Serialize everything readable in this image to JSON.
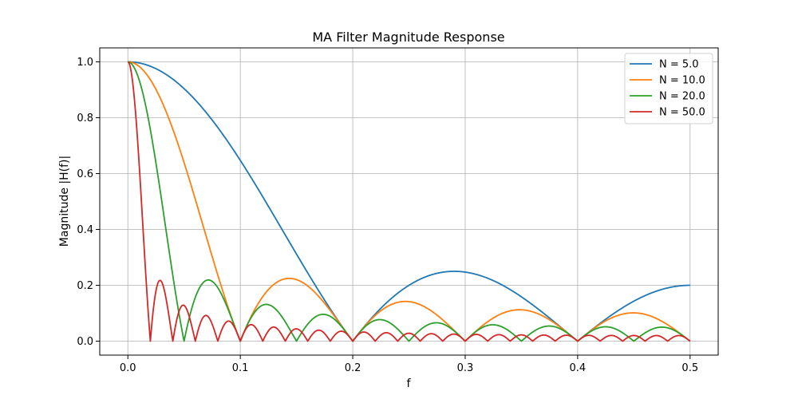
{
  "chart_data": {
    "type": "line",
    "title": "MA Filter Magnitude Response",
    "xlabel": "f",
    "ylabel": "Magnitude |H(f)|",
    "xlim": [
      -0.025,
      0.525
    ],
    "ylim": [
      -0.05,
      1.05
    ],
    "x_ticks": [
      0.0,
      0.1,
      0.2,
      0.3,
      0.4,
      0.5
    ],
    "x_tick_labels": [
      "0.0",
      "0.1",
      "0.2",
      "0.3",
      "0.4",
      "0.5"
    ],
    "y_ticks": [
      0.0,
      0.2,
      0.4,
      0.6,
      0.8,
      1.0
    ],
    "y_tick_labels": [
      "0.0",
      "0.2",
      "0.4",
      "0.6",
      "0.8",
      "1.0"
    ],
    "grid": true,
    "legend_position": "top-right",
    "formula": "|sin(pi*N*f) / (N*sin(pi*f))|",
    "f_range": [
      0.0,
      0.5
    ],
    "series": [
      {
        "name": "N = 5.0",
        "N": 5,
        "color": "#1f77b4"
      },
      {
        "name": "N = 10.0",
        "N": 10,
        "color": "#ff7f0e"
      },
      {
        "name": "N = 20.0",
        "N": 20,
        "color": "#2ca02c"
      },
      {
        "name": "N = 50.0",
        "N": 50,
        "color": "#d62728"
      }
    ]
  }
}
